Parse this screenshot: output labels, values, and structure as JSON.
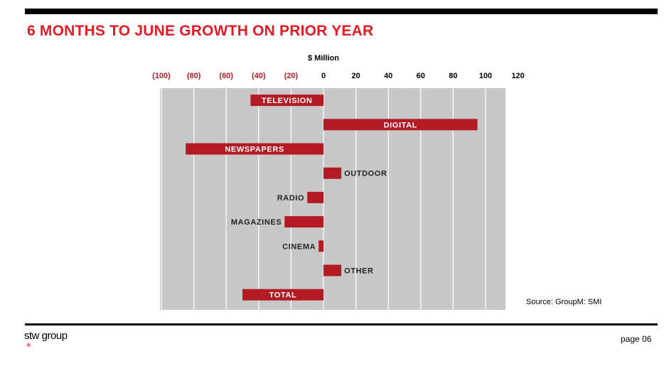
{
  "header": {
    "title": "6 MONTHS TO JUNE GROWTH ON PRIOR YEAR"
  },
  "footer": {
    "source": "Source: GroupM: SMI",
    "logo_text": "stw group",
    "page": "page 06"
  },
  "colors": {
    "bar": "#b31b24",
    "plot_bg": "#c8c8c8",
    "accent": "#e31b23",
    "neg_tick": "#b31b24"
  },
  "chart_data": {
    "type": "bar",
    "orientation": "horizontal",
    "title": "6 MONTHS TO JUNE GROWTH ON PRIOR YEAR",
    "xlabel": "$ Million",
    "ylabel": "",
    "xlim": [
      -100,
      120
    ],
    "grid": true,
    "xticks": [
      -100,
      -80,
      -60,
      -40,
      -20,
      0,
      20,
      40,
      60,
      80,
      100,
      120
    ],
    "xtick_labels": [
      "(100)",
      "(80)",
      "(60)",
      "(40)",
      "(20)",
      "0",
      "20",
      "40",
      "60",
      "80",
      "100",
      "120"
    ],
    "categories": [
      "TELEVISION",
      "DIGITAL",
      "NEWSPAPERS",
      "OUTDOOR",
      "RADIO",
      "MAGAZINES",
      "CINEMA",
      "OTHER",
      "TOTAL"
    ],
    "values": [
      -45,
      95,
      -85,
      11,
      -10,
      -24,
      -3,
      11,
      -50
    ]
  }
}
